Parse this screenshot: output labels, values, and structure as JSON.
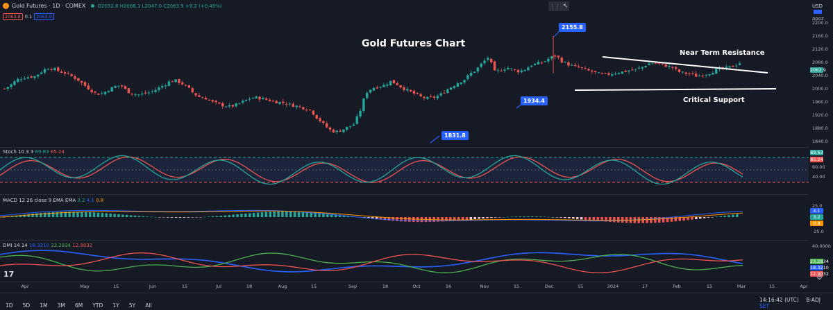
{
  "header": {
    "symbol": "Gold Futures · 1D · COMEX",
    "ohlc": "O2052.8 H2066.1 L2047.0 C2063.9 +9.2 (+0.45%)",
    "sell_price": "2063.8",
    "spread": "0.1",
    "buy_price": "2063.9",
    "currency": "USD",
    "scale_mode": "apoz"
  },
  "annotations": {
    "title": "Gold Futures Chart",
    "resistance": "Near Term Resistance",
    "support": "Critical Support",
    "callout_high": "2155.8",
    "callout_low": "1831.8",
    "callout_mid": "1934.4"
  },
  "price_axis": {
    "ticks": [
      "2200.0",
      "2160.0",
      "2120.0",
      "2080.0",
      "2040.0",
      "2000.0",
      "1960.0",
      "1920.0",
      "1880.0",
      "1840.0",
      "1800.0"
    ],
    "current": "2063.9"
  },
  "stoch": {
    "label": "Stoch 10 3 3",
    "k": "89.83",
    "d": "85.24",
    "ticks": [
      "80.00",
      "60.00",
      "40.00",
      "20.00"
    ]
  },
  "macd": {
    "label": "MACD 12 26 close 9 EMA EMA",
    "hist": "3.2",
    "macd": "4.1",
    "signal": "0.8",
    "ticks": [
      "25.0",
      "-25.0"
    ],
    "badges": [
      "4.1",
      "3.2",
      "0.8"
    ]
  },
  "dmi": {
    "label": "DMI 14 14",
    "diminus": "18.3210",
    "adx": "23.2834",
    "diplus": "12.9032",
    "ticks": [
      "40.0000"
    ],
    "badges": [
      "23.2834",
      "18.3210",
      "12.9032"
    ]
  },
  "x_axis": [
    "Apr",
    "May",
    "15",
    "Jun",
    "15",
    "Jul",
    "18",
    "Aug",
    "15",
    "Sep",
    "18",
    "Oct",
    "16",
    "Nov",
    "15",
    "Dec",
    "15",
    "2024",
    "17",
    "Feb",
    "15",
    "Mar",
    "15",
    "Apr"
  ],
  "timeframes": [
    "1D",
    "5D",
    "1M",
    "3M",
    "6M",
    "YTD",
    "1Y",
    "5Y",
    "All"
  ],
  "status": {
    "time": "14:16:42 (UTC)",
    "adj": "B-ADJ",
    "set": "SET"
  },
  "colors": {
    "background": "#161a25",
    "up": "#26a69a",
    "down": "#ef5350",
    "callout": "#2962ff",
    "stoch_k": "#26a69a",
    "stoch_d": "#ef5350",
    "dmi_plus": "#4caf50",
    "dmi_minus": "#ef5350",
    "adx": "#2962ff"
  },
  "icons": [
    "gold-symbol-icon",
    "cursor-icon",
    "drag-handle-icon",
    "tradingview-logo-icon",
    "gear-icon"
  ],
  "chart_data": {
    "type": "candlestick",
    "title": "Gold Futures Chart",
    "ylabel": "USD",
    "ylim": [
      1800,
      2200
    ],
    "key_levels": {
      "high": 2155.8,
      "low": 1831.8,
      "mid_low": 1934.4,
      "support": 2000,
      "resistance_start": 2100,
      "resistance_end": 2048
    },
    "close_series_approx": [
      1978,
      1990,
      2008,
      2015,
      2018,
      2020,
      2035,
      2048,
      2045,
      2036,
      2030,
      2020,
      2008,
      1990,
      1975,
      1960,
      1962,
      1975,
      1985,
      1990,
      1970,
      1960,
      1958,
      1962,
      1968,
      1978,
      1990,
      2003,
      2005,
      1995,
      1980,
      1960,
      1948,
      1945,
      1932,
      1925,
      1920,
      1918,
      1925,
      1935,
      1945,
      1948,
      1945,
      1940,
      1935,
      1932,
      1928,
      1922,
      1918,
      1912,
      1905,
      1880,
      1860,
      1840,
      1832,
      1838,
      1848,
      1858,
      1900,
      1965,
      1980,
      1985,
      1990,
      2003,
      1994,
      1980,
      1970,
      1960,
      1950,
      1945,
      1948,
      1955,
      1972,
      1985,
      1998,
      2008,
      2028,
      2042,
      2065,
      2085,
      2035,
      2040,
      2050,
      2042,
      2036,
      2044,
      2058,
      2063,
      2068,
      2082,
      2090,
      2070,
      2060,
      2052,
      2048,
      2040,
      2035,
      2028,
      2025,
      2028,
      2033,
      2035,
      2040,
      2042,
      2050,
      2062,
      2065,
      2060,
      2055,
      2050,
      2035,
      2030,
      2028,
      2020,
      2025,
      2030,
      2040,
      2045,
      2048,
      2055,
      2063.9
    ]
  }
}
